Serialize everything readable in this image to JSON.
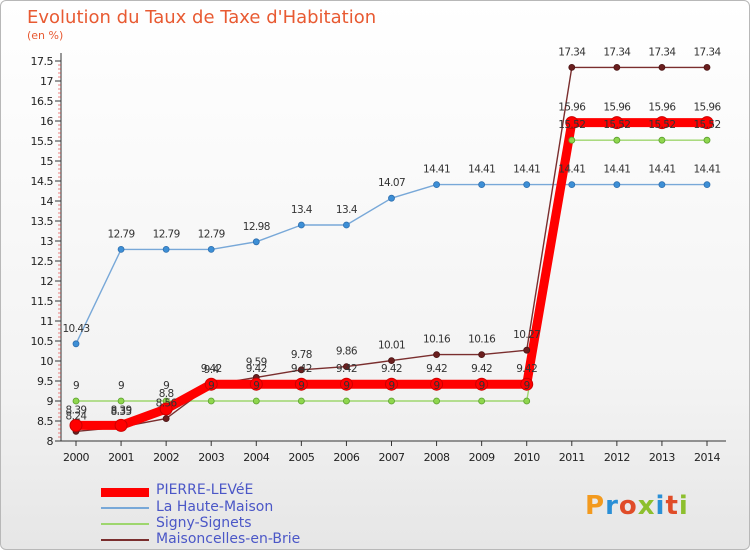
{
  "header": {
    "title": "Evolution du Taux de Taxe d'Habitation",
    "unit": "(en %)"
  },
  "logo": {
    "text": "Proxiti",
    "colors": [
      "#f39a1e",
      "#2a8fd6",
      "#e04c28",
      "#8dbf2e",
      "#2a8fd6",
      "#e04c28",
      "#8dbf2e"
    ]
  },
  "chart_data": {
    "type": "line",
    "x": [
      "2000",
      "2001",
      "2002",
      "2003",
      "2004",
      "2005",
      "2006",
      "2007",
      "2008",
      "2009",
      "2010",
      "2011",
      "2012",
      "2013",
      "2014"
    ],
    "ylim": [
      8,
      17.5
    ],
    "yticks": [
      "8",
      "8.5",
      "9",
      "9.5",
      "10",
      "10.5",
      "11",
      "11.5",
      "12",
      "12.5",
      "13",
      "13.5",
      "14",
      "14.5",
      "15",
      "15.5",
      "16",
      "16.5",
      "17",
      "17.5"
    ],
    "grid": false,
    "legend_position": "bottom-left",
    "series": [
      {
        "name": "PIERRE-LEVéE",
        "color": "#ff0000",
        "values": [
          8.39,
          8.39,
          8.8,
          9.42,
          9.42,
          9.42,
          9.42,
          9.42,
          9.42,
          9.42,
          9.42,
          15.96,
          15.96,
          15.96,
          15.96
        ],
        "labels": [
          "8.39",
          "8.39",
          "8.8",
          "9.42",
          "9.42",
          "9.42",
          "9.42",
          "9.42",
          "9.42",
          "9.42",
          "9.42",
          "15.96",
          "15.96",
          "15.96",
          "15.96"
        ]
      },
      {
        "name": "La Haute-Maison",
        "color": "#78a8d8",
        "values": [
          10.43,
          12.79,
          12.79,
          12.79,
          12.98,
          13.4,
          13.4,
          14.07,
          14.41,
          14.41,
          14.41,
          14.41,
          14.41,
          14.41,
          14.41
        ],
        "labels": [
          "10.43",
          "12.79",
          "12.79",
          "12.79",
          "12.98",
          "13.4",
          "13.4",
          "14.07",
          "14.41",
          "14.41",
          "14.41",
          "14.41",
          "14.41",
          "14.41",
          "14.41"
        ]
      },
      {
        "name": "Signy-Signets",
        "color": "#9ed66e",
        "values": [
          9,
          9,
          9,
          9,
          9,
          9,
          9,
          9,
          9,
          9,
          9,
          15.52,
          15.52,
          15.52,
          15.52
        ],
        "labels": [
          "9",
          "9",
          "9",
          "9",
          "9",
          "9",
          "9",
          "9",
          "9",
          "9",
          "9",
          "15.52",
          "15.52",
          "15.52",
          "15.52"
        ]
      },
      {
        "name": "Maisoncelles-en-Brie",
        "color": "#7a2e2e",
        "values": [
          8.24,
          8.35,
          8.56,
          9.4,
          9.59,
          9.78,
          9.86,
          10.01,
          10.16,
          10.16,
          10.27,
          17.34,
          17.34,
          17.34,
          17.34
        ],
        "labels": [
          "8.24",
          "8.35",
          "8.56",
          "9.4",
          "9.59",
          "9.78",
          "9.86",
          "10.01",
          "10.16",
          "10.16",
          "10.27",
          "17.34",
          "17.34",
          "17.34",
          "17.34"
        ]
      }
    ]
  }
}
